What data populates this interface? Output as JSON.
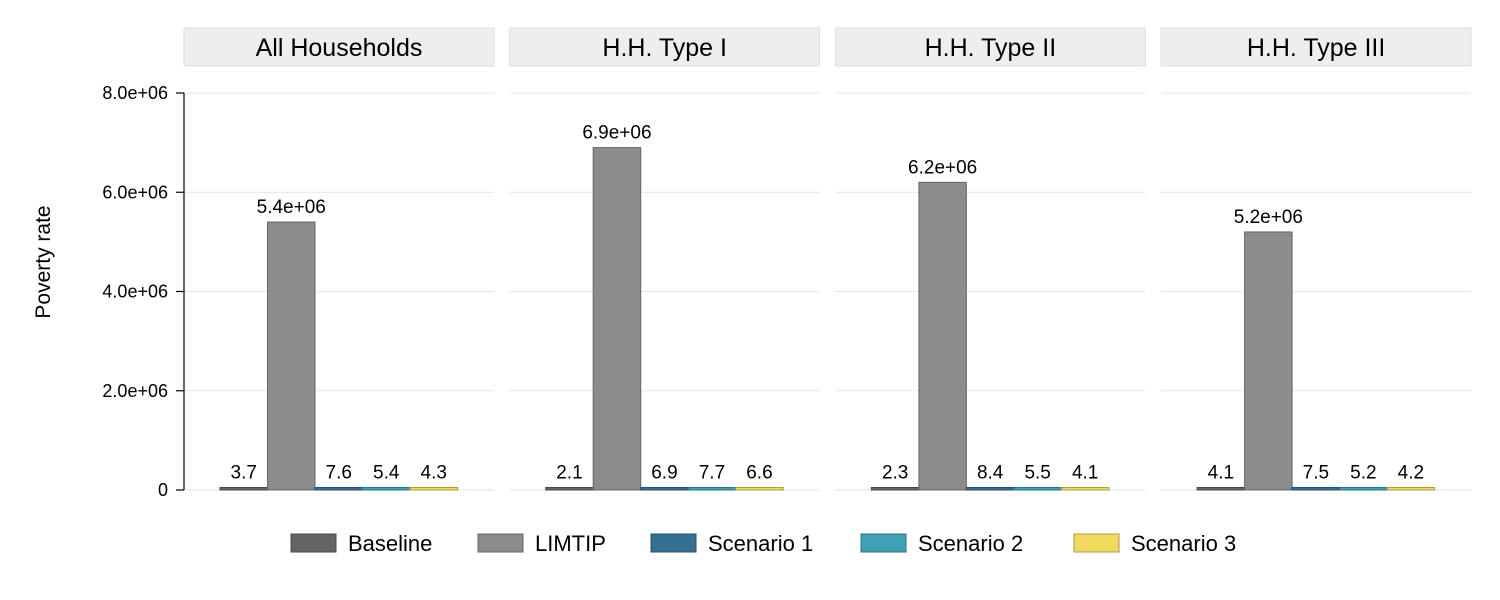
{
  "chart_data": {
    "type": "bar",
    "ylabel": "Poverty rate",
    "ylim": [
      0,
      8000000
    ],
    "yticks": [
      0,
      2000000,
      4000000,
      6000000,
      8000000
    ],
    "ytick_labels": [
      "0",
      "2.0e+06",
      "4.0e+06",
      "6.0e+06",
      "8.0e+06"
    ],
    "grid": true,
    "legend_position": "bottom",
    "series": [
      {
        "name": "Baseline",
        "color": "#646464"
      },
      {
        "name": "LIMTIP",
        "color": "#8c8c8c"
      },
      {
        "name": "Scenario 1",
        "color": "#356f92"
      },
      {
        "name": "Scenario 2",
        "color": "#3fa0b6"
      },
      {
        "name": "Scenario 3",
        "color": "#f0d95c"
      }
    ],
    "panels": [
      {
        "title": "All Households",
        "values": [
          3.7,
          5400000,
          7.6,
          5.4,
          4.3
        ],
        "labels": [
          "3.7",
          "5.4e+06",
          "7.6",
          "5.4",
          "4.3"
        ]
      },
      {
        "title": "H.H. Type I",
        "values": [
          2.1,
          6900000,
          6.9,
          7.7,
          6.6
        ],
        "labels": [
          "2.1",
          "6.9e+06",
          "6.9",
          "7.7",
          "6.6"
        ]
      },
      {
        "title": "H.H. Type II",
        "values": [
          2.3,
          6200000,
          8.4,
          5.5,
          4.1
        ],
        "labels": [
          "2.3",
          "6.2e+06",
          "8.4",
          "5.5",
          "4.1"
        ]
      },
      {
        "title": "H.H. Type III",
        "values": [
          4.1,
          5200000,
          7.5,
          5.2,
          4.2
        ],
        "labels": [
          "4.1",
          "5.2e+06",
          "7.5",
          "5.2",
          "4.2"
        ]
      }
    ]
  }
}
